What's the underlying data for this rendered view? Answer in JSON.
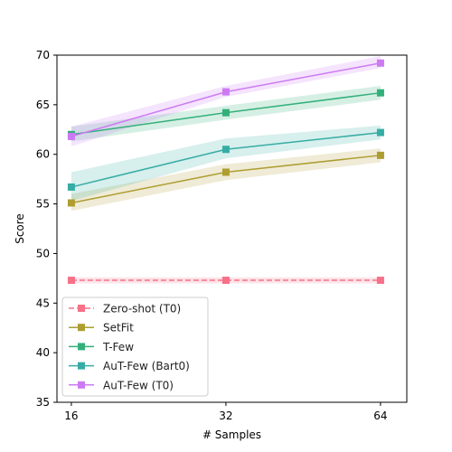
{
  "chart_data": {
    "type": "line",
    "xlabel": "# Samples",
    "ylabel": "Score",
    "x": [
      16,
      32,
      64
    ],
    "x_scale": "log2",
    "xlim": [
      15,
      72
    ],
    "ylim": [
      35,
      70
    ],
    "yticks": [
      35,
      40,
      45,
      50,
      55,
      60,
      65,
      70
    ],
    "xticks": [
      "16",
      "32",
      "64"
    ],
    "grid": false,
    "legend_position": "lower-left",
    "series": [
      {
        "name": "Zero-shot (T0)",
        "color": "#f77189",
        "dashed": true,
        "values": [
          47.3,
          47.3,
          47.3
        ],
        "lower": [
          47.0,
          47.0,
          47.0
        ],
        "upper": [
          47.6,
          47.6,
          47.6
        ]
      },
      {
        "name": "SetFit",
        "color": "#ae9d31",
        "dashed": false,
        "values": [
          55.1,
          58.2,
          59.9
        ],
        "lower": [
          54.3,
          57.4,
          59.2
        ],
        "upper": [
          56.0,
          59.0,
          60.6
        ]
      },
      {
        "name": "T-Few",
        "color": "#33b07a",
        "dashed": false,
        "values": [
          62.0,
          64.2,
          66.2
        ],
        "lower": [
          61.3,
          63.5,
          65.5
        ],
        "upper": [
          62.8,
          64.9,
          66.9
        ]
      },
      {
        "name": "AuT-Few (Bart0)",
        "color": "#36ada4",
        "dashed": false,
        "values": [
          56.7,
          60.5,
          62.2
        ],
        "lower": [
          55.3,
          59.6,
          61.5
        ],
        "upper": [
          58.2,
          61.6,
          62.9
        ]
      },
      {
        "name": "AuT-Few (T0)",
        "color": "#cc7af4",
        "dashed": false,
        "values": [
          61.8,
          66.3,
          69.2
        ],
        "lower": [
          60.8,
          65.8,
          68.7
        ],
        "upper": [
          62.8,
          66.9,
          69.9
        ]
      }
    ]
  }
}
